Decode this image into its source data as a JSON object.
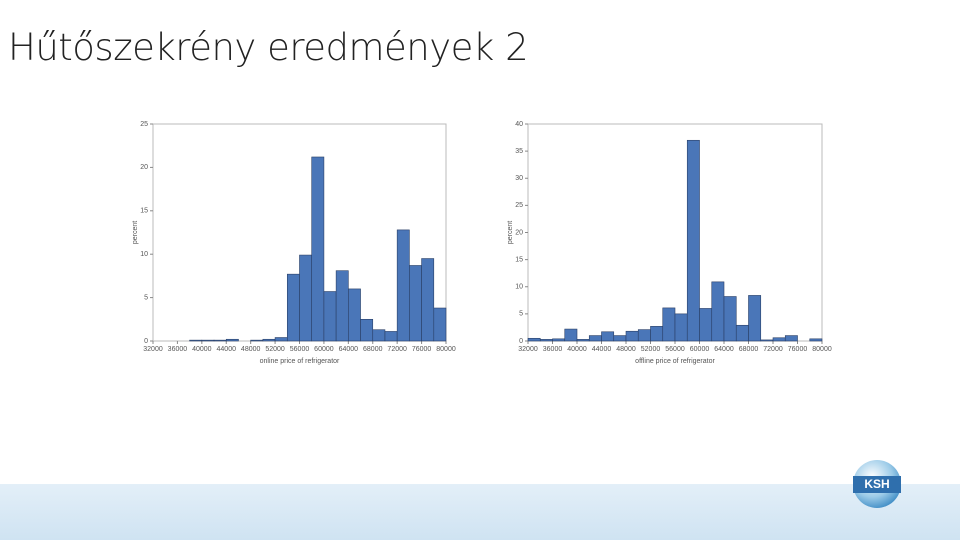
{
  "title": "Hűtőszekrény eredmények 2",
  "logo": "KSH",
  "chart_data": [
    {
      "type": "histogram",
      "x_label": "online price of refrigerator",
      "y_label": "percent",
      "color": "#4a76b8",
      "bins": [
        32000,
        34000,
        36000,
        38000,
        40000,
        42000,
        44000,
        46000,
        48000,
        50000,
        52000,
        54000,
        56000,
        58000,
        60000,
        62000,
        64000,
        66000,
        68000,
        70000,
        72000,
        74000,
        76000,
        78000,
        80000
      ],
      "values": [
        0,
        0,
        0,
        0.1,
        0.1,
        0.1,
        0.2,
        0,
        0.1,
        0.2,
        0.4,
        7.7,
        9.9,
        21.2,
        5.7,
        8.1,
        6,
        2.5,
        1.3,
        1.1,
        12.8,
        8.7,
        9.5,
        3.8
      ],
      "xlim": [
        32000,
        80000
      ],
      "xticks": [
        32000,
        36000,
        40000,
        44000,
        48000,
        52000,
        56000,
        60000,
        64000,
        68000,
        72000,
        76000,
        80000
      ],
      "ylim": [
        0,
        25
      ],
      "yticks": [
        0,
        5,
        10,
        15,
        20,
        25
      ]
    },
    {
      "type": "histogram",
      "x_label": "offline price of refrigerator",
      "y_label": "percent",
      "color": "#4a76b8",
      "bins": [
        32000,
        34000,
        36000,
        38000,
        40000,
        42000,
        44000,
        46000,
        48000,
        50000,
        52000,
        54000,
        56000,
        58000,
        60000,
        62000,
        64000,
        66000,
        68000,
        70000,
        72000,
        74000,
        76000,
        78000,
        80000
      ],
      "values": [
        0.5,
        0.3,
        0.4,
        2.2,
        0.3,
        1,
        1.7,
        1,
        1.8,
        2.1,
        2.7,
        6.1,
        5,
        37,
        6,
        10.9,
        8.2,
        2.9,
        8.4,
        0.2,
        0.6,
        1,
        0,
        0.4
      ],
      "xlim": [
        32000,
        80000
      ],
      "xticks": [
        32000,
        36000,
        40000,
        44000,
        48000,
        52000,
        56000,
        60000,
        64000,
        68000,
        72000,
        76000,
        80000
      ],
      "ylim": [
        0,
        40
      ],
      "yticks": [
        0,
        5,
        10,
        15,
        20,
        25,
        30,
        35,
        40
      ]
    }
  ]
}
